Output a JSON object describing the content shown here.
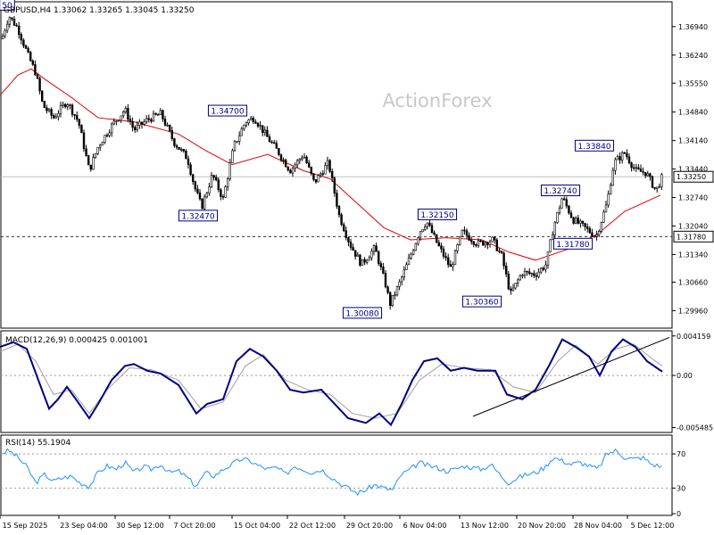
{
  "chart_data": {
    "type": "candlestick",
    "symbol_header": "GBPUSD,H4  1.33062 1.33265 1.33045 1.33250",
    "watermark": "ActionForex",
    "current_price_label": "1.33250",
    "support_line_label": "1.31780",
    "main_axis": {
      "ylim": [
        1.2953,
        1.3755
      ],
      "ticks": [
        "1.36940",
        "1.36240",
        "1.35550",
        "1.34840",
        "1.34140",
        "1.33440",
        "1.32740",
        "1.32040",
        "1.31340",
        "1.30660",
        "1.29960"
      ]
    },
    "x_ticks": [
      "15 Sep 2025",
      "23 Sep 04:00",
      "30 Sep 12:00",
      "7 Oct 20:00",
      "15 Oct 04:00",
      "22 Oct 12:00",
      "29 Oct 20:00",
      "6 Nov 04:00",
      "13 Nov 12:00",
      "20 Nov 20:00",
      "28 Nov 04:00",
      "5 Dec 12:00"
    ],
    "price_path": [
      [
        0,
        1.365
      ],
      [
        10,
        1.372
      ],
      [
        20,
        1.369
      ],
      [
        32,
        1.362
      ],
      [
        40,
        1.358
      ],
      [
        48,
        1.35
      ],
      [
        60,
        1.347
      ],
      [
        75,
        1.351
      ],
      [
        88,
        1.346
      ],
      [
        100,
        1.334
      ],
      [
        110,
        1.34
      ],
      [
        125,
        1.345
      ],
      [
        140,
        1.349
      ],
      [
        150,
        1.344
      ],
      [
        165,
        1.3465
      ],
      [
        180,
        1.348
      ],
      [
        195,
        1.341
      ],
      [
        210,
        1.337
      ],
      [
        218,
        1.33
      ],
      [
        226,
        1.325
      ],
      [
        238,
        1.333
      ],
      [
        250,
        1.327
      ],
      [
        262,
        1.34
      ],
      [
        275,
        1.346
      ],
      [
        285,
        1.347
      ],
      [
        300,
        1.342
      ],
      [
        312,
        1.3385
      ],
      [
        325,
        1.334
      ],
      [
        340,
        1.338
      ],
      [
        352,
        1.331
      ],
      [
        368,
        1.336
      ],
      [
        380,
        1.323
      ],
      [
        392,
        1.316
      ],
      [
        405,
        1.311
      ],
      [
        420,
        1.315
      ],
      [
        432,
        1.306
      ],
      [
        437,
        1.3012
      ],
      [
        447,
        1.306
      ],
      [
        458,
        1.312
      ],
      [
        470,
        1.319
      ],
      [
        478,
        1.3215
      ],
      [
        490,
        1.316
      ],
      [
        505,
        1.31
      ],
      [
        518,
        1.319
      ],
      [
        535,
        1.316
      ],
      [
        552,
        1.317
      ],
      [
        562,
        1.313
      ],
      [
        572,
        1.3036
      ],
      [
        585,
        1.309
      ],
      [
        600,
        1.3085
      ],
      [
        612,
        1.311
      ],
      [
        620,
        1.32
      ],
      [
        630,
        1.3274
      ],
      [
        642,
        1.322
      ],
      [
        655,
        1.32
      ],
      [
        668,
        1.3178
      ],
      [
        680,
        1.326
      ],
      [
        688,
        1.336
      ],
      [
        700,
        1.3384
      ],
      [
        712,
        1.334
      ],
      [
        724,
        1.3335
      ],
      [
        735,
        1.329
      ],
      [
        742,
        1.3325
      ]
    ],
    "ma_path": [
      [
        0,
        1.3525
      ],
      [
        20,
        1.3575
      ],
      [
        35,
        1.359
      ],
      [
        50,
        1.3565
      ],
      [
        80,
        1.352
      ],
      [
        110,
        1.347
      ],
      [
        150,
        1.346
      ],
      [
        200,
        1.343
      ],
      [
        230,
        1.339
      ],
      [
        260,
        1.3355
      ],
      [
        300,
        1.338
      ],
      [
        340,
        1.334
      ],
      [
        370,
        1.332
      ],
      [
        400,
        1.326
      ],
      [
        430,
        1.32
      ],
      [
        460,
        1.317
      ],
      [
        500,
        1.3175
      ],
      [
        540,
        1.317
      ],
      [
        570,
        1.314
      ],
      [
        600,
        1.312
      ],
      [
        640,
        1.315
      ],
      [
        670,
        1.3185
      ],
      [
        700,
        1.324
      ],
      [
        740,
        1.328
      ]
    ],
    "annotations": [
      {
        "text": "1.34700",
        "x": 255,
        "price": 1.347
      },
      {
        "text": "1.32470",
        "x": 222,
        "price": 1.3247
      },
      {
        "text": "1.30080",
        "x": 406,
        "price": 1.3008
      },
      {
        "text": "1.32150",
        "x": 490,
        "price": 1.3215
      },
      {
        "text": "1.30360",
        "x": 540,
        "price": 1.3036
      },
      {
        "text": "1.32740",
        "x": 628,
        "price": 1.3274
      },
      {
        "text": "1.31780",
        "x": 642,
        "price": 1.3178
      },
      {
        "text": "1.33840",
        "x": 666,
        "price": 1.3384
      },
      {
        "text": "50",
        "x": 8,
        "price": 1.373
      }
    ],
    "macd": {
      "label": "MACD(12,26,9) 0.000425 0.001001",
      "ylim": [
        -0.006,
        0.0047
      ],
      "ticks": [
        "0.004159",
        "0.00",
        "-0.005485"
      ],
      "macd_path": [
        [
          0,
          0.003
        ],
        [
          15,
          0.0035
        ],
        [
          30,
          0.0028
        ],
        [
          45,
          -0.001
        ],
        [
          55,
          -0.0035
        ],
        [
          65,
          -0.0025
        ],
        [
          75,
          -0.0012
        ],
        [
          85,
          -0.0025
        ],
        [
          100,
          -0.0045
        ],
        [
          110,
          -0.003
        ],
        [
          125,
          -0.0005
        ],
        [
          140,
          0.001
        ],
        [
          150,
          0.0012
        ],
        [
          165,
          0.0005
        ],
        [
          180,
          0.0002
        ],
        [
          200,
          -0.001
        ],
        [
          220,
          -0.004
        ],
        [
          232,
          -0.003
        ],
        [
          250,
          -0.0025
        ],
        [
          265,
          0.0015
        ],
        [
          280,
          0.0028
        ],
        [
          295,
          0.002
        ],
        [
          310,
          0.0005
        ],
        [
          325,
          -0.0015
        ],
        [
          340,
          -0.0018
        ],
        [
          360,
          -0.0015
        ],
        [
          375,
          -0.003
        ],
        [
          390,
          -0.0045
        ],
        [
          410,
          -0.005
        ],
        [
          425,
          -0.004
        ],
        [
          438,
          -0.0052
        ],
        [
          450,
          -0.003
        ],
        [
          462,
          -0.0005
        ],
        [
          475,
          0.0015
        ],
        [
          490,
          0.0018
        ],
        [
          505,
          0.0005
        ],
        [
          520,
          0.0008
        ],
        [
          535,
          0.0005
        ],
        [
          555,
          0.0005
        ],
        [
          568,
          -0.002
        ],
        [
          585,
          -0.0025
        ],
        [
          600,
          -0.0015
        ],
        [
          615,
          0.001
        ],
        [
          630,
          0.0038
        ],
        [
          645,
          0.003
        ],
        [
          660,
          0.002
        ],
        [
          672,
          0.0
        ],
        [
          685,
          0.0025
        ],
        [
          698,
          0.0038
        ],
        [
          712,
          0.003
        ],
        [
          725,
          0.0015
        ],
        [
          742,
          0.0004
        ]
      ],
      "signal_path": [
        [
          0,
          0.0025
        ],
        [
          20,
          0.0033
        ],
        [
          40,
          0.0015
        ],
        [
          60,
          -0.002
        ],
        [
          80,
          -0.0015
        ],
        [
          100,
          -0.004
        ],
        [
          120,
          -0.0015
        ],
        [
          145,
          0.0008
        ],
        [
          170,
          0.0006
        ],
        [
          200,
          -0.0005
        ],
        [
          225,
          -0.0035
        ],
        [
          250,
          -0.0028
        ],
        [
          275,
          0.001
        ],
        [
          295,
          0.0022
        ],
        [
          320,
          -0.0005
        ],
        [
          345,
          -0.0015
        ],
        [
          370,
          -0.002
        ],
        [
          395,
          -0.004
        ],
        [
          420,
          -0.0045
        ],
        [
          445,
          -0.004
        ],
        [
          470,
          -0.0005
        ],
        [
          495,
          0.0012
        ],
        [
          520,
          0.0008
        ],
        [
          550,
          0.0006
        ],
        [
          575,
          -0.0012
        ],
        [
          600,
          -0.0018
        ],
        [
          625,
          0.0015
        ],
        [
          645,
          0.0032
        ],
        [
          670,
          0.0012
        ],
        [
          690,
          0.0028
        ],
        [
          710,
          0.0033
        ],
        [
          730,
          0.0018
        ],
        [
          742,
          0.001
        ]
      ],
      "trendline": [
        [
          530,
          -0.0043
        ],
        [
          750,
          0.004
        ]
      ]
    },
    "rsi": {
      "label": "RSI(14) 55.1904",
      "ylim": [
        -2,
        92
      ],
      "ticks": [
        "70",
        "30",
        "0"
      ],
      "levels": [
        70,
        30
      ],
      "path": [
        [
          0,
          70
        ],
        [
          10,
          74
        ],
        [
          20,
          66
        ],
        [
          30,
          55
        ],
        [
          40,
          36
        ],
        [
          50,
          46
        ],
        [
          60,
          38
        ],
        [
          70,
          42
        ],
        [
          80,
          44
        ],
        [
          90,
          36
        ],
        [
          100,
          32
        ],
        [
          110,
          48
        ],
        [
          120,
          56
        ],
        [
          130,
          52
        ],
        [
          140,
          60
        ],
        [
          150,
          48
        ],
        [
          160,
          55
        ],
        [
          170,
          52
        ],
        [
          180,
          58
        ],
        [
          190,
          48
        ],
        [
          200,
          50
        ],
        [
          210,
          42
        ],
        [
          220,
          32
        ],
        [
          230,
          48
        ],
        [
          240,
          44
        ],
        [
          250,
          52
        ],
        [
          260,
          58
        ],
        [
          270,
          64
        ],
        [
          280,
          62
        ],
        [
          290,
          56
        ],
        [
          300,
          52
        ],
        [
          310,
          54
        ],
        [
          320,
          46
        ],
        [
          330,
          56
        ],
        [
          340,
          52
        ],
        [
          350,
          48
        ],
        [
          360,
          52
        ],
        [
          370,
          44
        ],
        [
          380,
          36
        ],
        [
          390,
          30
        ],
        [
          400,
          24
        ],
        [
          410,
          28
        ],
        [
          420,
          34
        ],
        [
          430,
          30
        ],
        [
          440,
          28
        ],
        [
          450,
          46
        ],
        [
          460,
          52
        ],
        [
          470,
          60
        ],
        [
          480,
          56
        ],
        [
          490,
          54
        ],
        [
          500,
          50
        ],
        [
          510,
          52
        ],
        [
          520,
          56
        ],
        [
          530,
          54
        ],
        [
          540,
          52
        ],
        [
          550,
          58
        ],
        [
          560,
          46
        ],
        [
          570,
          36
        ],
        [
          580,
          42
        ],
        [
          590,
          46
        ],
        [
          600,
          48
        ],
        [
          610,
          54
        ],
        [
          620,
          66
        ],
        [
          630,
          62
        ],
        [
          640,
          58
        ],
        [
          650,
          60
        ],
        [
          660,
          56
        ],
        [
          670,
          52
        ],
        [
          680,
          70
        ],
        [
          690,
          74
        ],
        [
          700,
          66
        ],
        [
          710,
          64
        ],
        [
          720,
          66
        ],
        [
          730,
          58
        ],
        [
          742,
          55
        ]
      ]
    }
  }
}
